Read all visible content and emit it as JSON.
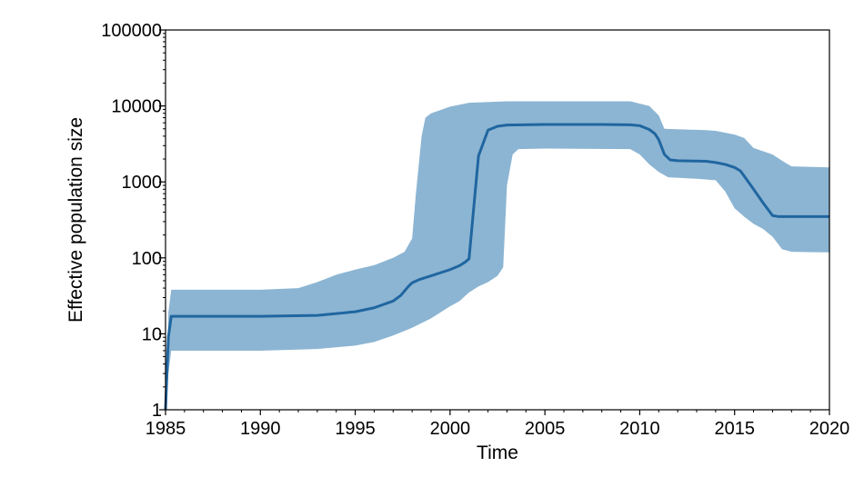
{
  "chart_data": {
    "type": "area",
    "title": "",
    "xlabel": "Time",
    "ylabel": "Effective population size",
    "xlim": [
      1985,
      2020
    ],
    "ylim": [
      1,
      100000
    ],
    "yscale": "log",
    "x_ticks": [
      1985,
      1990,
      1995,
      2000,
      2005,
      2010,
      2015,
      2020
    ],
    "y_ticks": [
      1,
      10,
      100,
      1000,
      10000,
      100000
    ],
    "x_tick_labels": [
      "1985",
      "1990",
      "1995",
      "2000",
      "2005",
      "2010",
      "2015",
      "2020"
    ],
    "y_tick_labels": [
      "1",
      "10",
      "100",
      "1000",
      "10000",
      "100000"
    ],
    "grid": false,
    "legend": "none",
    "colors": {
      "line": "#2066a0",
      "band": "#8cb5d3"
    },
    "series": [
      {
        "kind": "median",
        "x": [
          1985.0,
          1985.15,
          1985.3,
          1990,
          1993,
          1995,
          1996,
          1997,
          1997.4,
          1997.8,
          1998.0,
          1998.4,
          1999,
          2000,
          2000.5,
          2000.8,
          2001.0,
          2001.5,
          2002.0,
          2002.5,
          2003,
          2005,
          2008,
          2009.5,
          2010.0,
          2010.5,
          2010.8,
          2011.0,
          2011.3,
          2011.6,
          2012,
          2013,
          2013.5,
          2014.0,
          2014.5,
          2015.0,
          2015.3,
          2015.5,
          2016.0,
          2016.5,
          2017.0,
          2017.3,
          2017.6,
          2018.0,
          2020
        ],
        "y": [
          1,
          9,
          17,
          17,
          17.5,
          19.5,
          22,
          27,
          32,
          42,
          47,
          52,
          58,
          70,
          79,
          88,
          97,
          2200,
          4800,
          5400,
          5600,
          5700,
          5700,
          5650,
          5500,
          4900,
          4300,
          3600,
          2300,
          1950,
          1900,
          1880,
          1870,
          1800,
          1700,
          1550,
          1400,
          1200,
          800,
          530,
          360,
          350,
          350,
          350,
          350
        ]
      },
      {
        "kind": "upper-95",
        "x": [
          1985.0,
          1985.15,
          1985.3,
          1990,
          1992,
          1993,
          1994,
          1995,
          1996,
          1997,
          1997.6,
          1998.0,
          1998.2,
          1998.5,
          1998.7,
          1999,
          2000,
          2001,
          2003,
          2005,
          2009.5,
          2010.5,
          2011.0,
          2011.3,
          2013.5,
          2014,
          2015,
          2015.5,
          2016,
          2017,
          2017.5,
          2018,
          2020
        ],
        "y": [
          1,
          19,
          38,
          38,
          40,
          48,
          60,
          70,
          80,
          100,
          120,
          180,
          700,
          4000,
          7000,
          8000,
          9800,
          11000,
          11500,
          11500,
          11500,
          10000,
          7500,
          5000,
          4800,
          4700,
          4200,
          3800,
          2800,
          2300,
          1900,
          1600,
          1550
        ]
      },
      {
        "kind": "lower-95",
        "x": [
          1985.0,
          1985.15,
          1985.3,
          1990,
          1993,
          1995,
          1996,
          1997,
          1998,
          1999,
          2000,
          2000.5,
          2001,
          2001.5,
          2002,
          2002.5,
          2002.8,
          2003.0,
          2003.3,
          2003.6,
          2005,
          2009.5,
          2010.0,
          2010.5,
          2011.0,
          2011.5,
          2013,
          2014.0,
          2014.5,
          2015.0,
          2015.5,
          2016.0,
          2016.5,
          2017.0,
          2017.5,
          2018.0,
          2020
        ],
        "y": [
          1,
          3,
          6,
          6,
          6.3,
          7,
          7.8,
          9.5,
          12,
          16,
          23,
          27,
          35,
          42,
          48,
          58,
          75,
          900,
          2300,
          2700,
          2750,
          2700,
          2300,
          1700,
          1350,
          1150,
          1100,
          1050,
          750,
          450,
          350,
          280,
          240,
          190,
          130,
          120,
          118
        ]
      }
    ]
  }
}
